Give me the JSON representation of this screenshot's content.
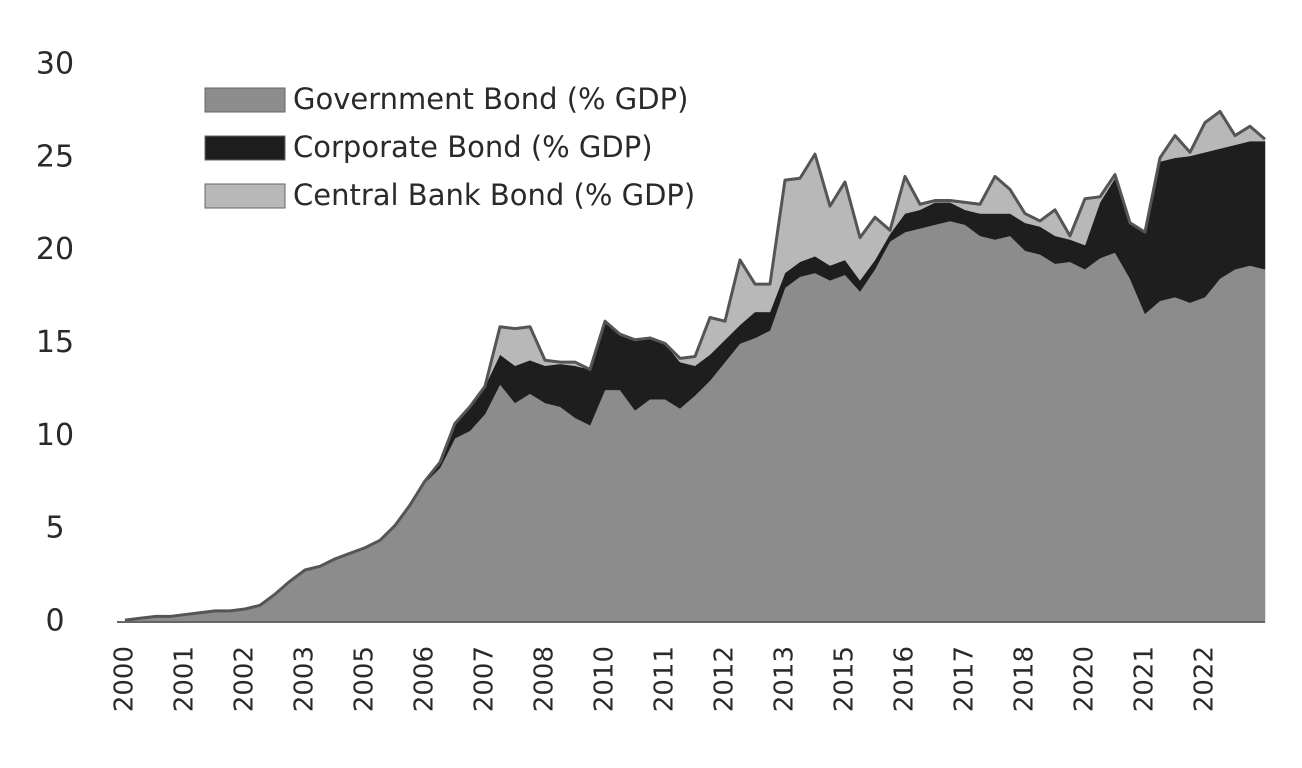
{
  "chart_data": {
    "type": "stacked-area",
    "categories": [
      "2000",
      null,
      null,
      null,
      "2001",
      null,
      null,
      null,
      "2002",
      null,
      null,
      null,
      "2003",
      null,
      null,
      null,
      "2005",
      null,
      null,
      null,
      "2006",
      null,
      null,
      null,
      "2007",
      null,
      null,
      null,
      "2008",
      null,
      null,
      null,
      "2010",
      null,
      null,
      null,
      "2011",
      null,
      null,
      null,
      "2012",
      null,
      null,
      null,
      "2013",
      null,
      null,
      null,
      "2015",
      null,
      null,
      null,
      "2016",
      null,
      null,
      null,
      "2017",
      null,
      null,
      null,
      "2018",
      null,
      null,
      null,
      "2020",
      null,
      null,
      null,
      "2021",
      null,
      null,
      null,
      "2022",
      null,
      null,
      null,
      null
    ],
    "series": [
      {
        "name": "Government Bond (% GDP)",
        "color": "#8c8c8c",
        "values": [
          0.1,
          0.2,
          0.3,
          0.3,
          0.4,
          0.5,
          0.6,
          0.6,
          0.7,
          0.9,
          1.5,
          2.2,
          2.8,
          3.0,
          3.4,
          3.7,
          4.0,
          4.4,
          5.2,
          6.3,
          7.5,
          8.3,
          9.9,
          10.3,
          11.2,
          12.8,
          11.8,
          12.3,
          11.8,
          11.6,
          11.0,
          10.6,
          12.5,
          12.5,
          11.4,
          12.0,
          12.0,
          11.5,
          12.2,
          13.0,
          14.0,
          15.0,
          15.3,
          15.7,
          18.0,
          18.6,
          18.8,
          18.4,
          18.7,
          17.8,
          19.0,
          20.5,
          21.0,
          21.2,
          21.4,
          21.6,
          21.4,
          20.8,
          20.6,
          20.8,
          20.0,
          19.8,
          19.3,
          19.4,
          19.0,
          19.6,
          19.9,
          18.5,
          16.6,
          17.3,
          17.5,
          17.2,
          17.5,
          18.5,
          19.0,
          19.2,
          19.0
        ]
      },
      {
        "name": "Corporate Bond (% GDP)",
        "color": "#1e1e1e",
        "values": [
          0,
          0,
          0,
          0,
          0,
          0,
          0,
          0,
          0,
          0,
          0,
          0,
          0,
          0,
          0,
          0,
          0,
          0,
          0,
          0,
          0.1,
          0.3,
          0.8,
          1.3,
          1.5,
          1.6,
          2.0,
          1.8,
          2.0,
          2.3,
          2.8,
          3.0,
          3.7,
          3.0,
          3.8,
          3.3,
          3.0,
          2.5,
          1.6,
          1.4,
          1.2,
          1.0,
          1.4,
          1.0,
          0.8,
          0.8,
          0.9,
          0.8,
          0.8,
          0.6,
          0.5,
          0.4,
          1.0,
          1.0,
          1.2,
          1.0,
          0.8,
          1.2,
          1.4,
          1.2,
          1.5,
          1.5,
          1.5,
          1.2,
          1.3,
          3.0,
          4.0,
          3.0,
          4.4,
          7.5,
          7.5,
          7.9,
          7.8,
          7.0,
          6.7,
          6.7,
          6.9
        ]
      },
      {
        "name": "Central Bank Bond (% GDP)",
        "color": "#b8b8b8",
        "values": [
          0,
          0,
          0,
          0,
          0,
          0,
          0,
          0,
          0,
          0,
          0,
          0,
          0,
          0,
          0,
          0,
          0,
          0,
          0,
          0,
          0,
          0,
          0,
          0,
          0,
          1.5,
          2.0,
          1.8,
          0.3,
          0.1,
          0.2,
          0,
          0,
          0,
          0,
          0,
          0,
          0.2,
          0.5,
          2.0,
          1.0,
          3.5,
          1.5,
          1.5,
          5.0,
          4.5,
          5.5,
          3.2,
          4.2,
          2.3,
          2.3,
          0.2,
          2.0,
          0.3,
          0.1,
          0.1,
          0.4,
          0.5,
          2.0,
          1.3,
          0.5,
          0.3,
          1.4,
          0.2,
          2.5,
          0.3,
          0.2,
          0,
          0,
          0.2,
          1.2,
          0.2,
          1.6,
          2.0,
          0.5,
          0.8,
          0.1
        ]
      }
    ],
    "ylim": [
      0,
      30
    ],
    "yticks": [
      0,
      5,
      10,
      15,
      20,
      25,
      30
    ],
    "legend": "upper-left",
    "outline_color": "#555555"
  }
}
